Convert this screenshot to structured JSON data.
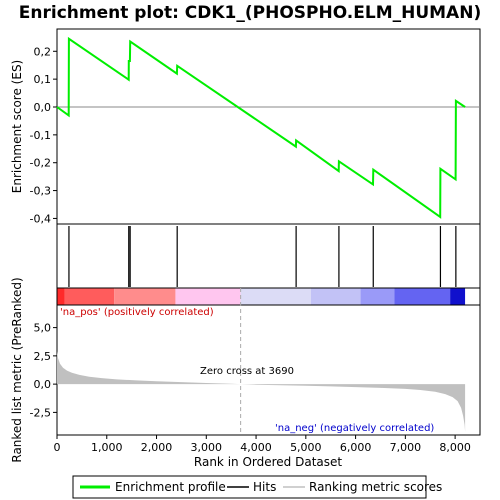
{
  "chart_data": {
    "type": "line",
    "title": "Enrichment plot: CDK1_(PHOSPHO.ELM_HUMAN)",
    "xlabel": "Rank in Ordered Dataset",
    "xlim": [
      0,
      8500
    ],
    "x_ticks": [
      0,
      1000,
      2000,
      3000,
      4000,
      5000,
      6000,
      7000,
      8000
    ],
    "x_tick_labels": [
      "0",
      "1,000",
      "2,000",
      "3,000",
      "4,000",
      "5,000",
      "6,000",
      "7,000",
      "8,000"
    ],
    "es_panel": {
      "ylabel": "Enrichment score (ES)",
      "ylim": [
        -0.42,
        0.28
      ],
      "y_ticks": [
        0.2,
        0.1,
        0.0,
        -0.1,
        -0.2,
        -0.3,
        -0.4
      ],
      "y_tick_labels": [
        "0,2",
        "0,1",
        "0,0",
        "-0,1",
        "-0,2",
        "-0,3",
        "-0,4"
      ],
      "series": [
        {
          "name": "Enrichment profile",
          "color": "#00ee00",
          "x": [
            0,
            235,
            240,
            1440,
            1442,
            1465,
            1470,
            2410,
            2415,
            4800,
            4805,
            5660,
            5665,
            6350,
            6355,
            7700,
            7705,
            8010,
            8015,
            8200
          ],
          "y": [
            0.0,
            -0.03,
            0.245,
            0.098,
            0.165,
            0.165,
            0.235,
            0.12,
            0.148,
            -0.142,
            -0.12,
            -0.23,
            -0.195,
            -0.278,
            -0.225,
            -0.395,
            -0.222,
            -0.26,
            0.022,
            0.0
          ]
        }
      ]
    },
    "hits_panel": {
      "name": "Hits",
      "positions": [
        240,
        1442,
        1470,
        2415,
        4805,
        5665,
        6355,
        7705,
        8015
      ]
    },
    "metric_panel": {
      "ylabel": "Ranked list metric (PreRanked)",
      "ylim": [
        -4.5,
        7.0
      ],
      "y_ticks": [
        5.0,
        2.5,
        0.0,
        -2.5
      ],
      "y_tick_labels": [
        "5,0",
        "2,5",
        "0,0",
        "-2,5"
      ],
      "name": "Ranking metric scores",
      "curve": {
        "x": [
          0,
          20,
          60,
          120,
          200,
          300,
          450,
          650,
          900,
          1200,
          1600,
          2000,
          2500,
          3000,
          3500,
          3690,
          4000,
          4500,
          5000,
          5500,
          6000,
          6500,
          7000,
          7300,
          7600,
          7800,
          7950,
          8050,
          8120,
          8160,
          8190,
          8200
        ],
        "y": [
          2.9,
          2.3,
          1.8,
          1.45,
          1.2,
          1.0,
          0.82,
          0.66,
          0.53,
          0.42,
          0.33,
          0.26,
          0.18,
          0.1,
          0.03,
          0.0,
          -0.05,
          -0.1,
          -0.15,
          -0.2,
          -0.26,
          -0.33,
          -0.42,
          -0.52,
          -0.68,
          -0.88,
          -1.15,
          -1.5,
          -2.1,
          -2.8,
          -3.6,
          -4.2
        ]
      },
      "zero_cross_label": "Zero cross at 3690",
      "zero_cross_x": 3690,
      "pos_label": "'na_pos' (positively correlated)",
      "neg_label": "'na_neg' (negatively correlated)"
    },
    "color_bar": [
      {
        "from": 0,
        "to": 150,
        "color": "#ff2a2a"
      },
      {
        "from": 150,
        "to": 1150,
        "color": "#ff5c5c"
      },
      {
        "from": 1150,
        "to": 2380,
        "color": "#ff8c8c"
      },
      {
        "from": 2380,
        "to": 3690,
        "color": "#ffc6ef"
      },
      {
        "from": 3690,
        "to": 5100,
        "color": "#dcdcf6"
      },
      {
        "from": 5100,
        "to": 6100,
        "color": "#c2c2f6"
      },
      {
        "from": 6100,
        "to": 6780,
        "color": "#9a9af8"
      },
      {
        "from": 6780,
        "to": 7900,
        "color": "#6464f2"
      },
      {
        "from": 7900,
        "to": 8200,
        "color": "#1010cc"
      }
    ],
    "legend": {
      "placement": "bottom",
      "items": [
        {
          "label": "Enrichment profile",
          "color": "#00ee00"
        },
        {
          "label": "Hits",
          "color": "#000000"
        },
        {
          "label": "Ranking metric scores",
          "color": "#c0c0c0"
        }
      ]
    }
  }
}
